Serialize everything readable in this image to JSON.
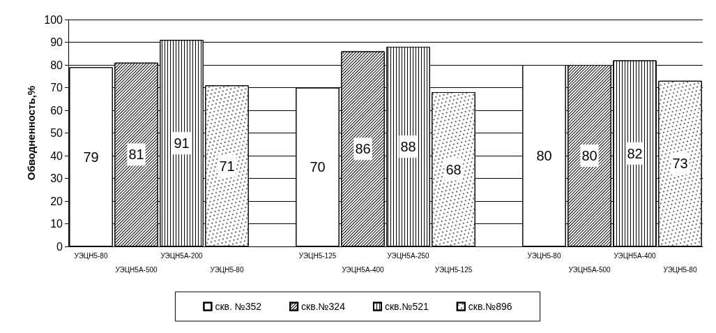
{
  "chart_data": {
    "type": "bar",
    "ylabel": "Обводненность,%",
    "categories": [
      "УЭЦН5-80",
      "УЭЦН5А-500",
      "УЭЦН5А-200",
      "УЭЦН5-80",
      null,
      "УЭЦН5-125",
      "УЭЦН5А-400",
      "УЭЦН5А-250",
      "УЭЦН5-125",
      null,
      "УЭЦН5-80",
      "УЭЦН5А-500",
      "УЭЦН5А-400",
      "УЭЦН5-80"
    ],
    "series": [
      {
        "name": "скв. №352",
        "color": "#ffffff",
        "values": [
          79,
          null,
          null,
          null,
          null,
          70,
          null,
          null,
          null,
          null,
          80,
          null,
          null,
          null
        ]
      },
      {
        "name": "скв.№324",
        "color": "#ffffff",
        "values": [
          null,
          81,
          null,
          null,
          null,
          null,
          86,
          null,
          null,
          null,
          null,
          80,
          null,
          null
        ]
      },
      {
        "name": "скв.№521",
        "color": "#ffffff",
        "values": [
          null,
          null,
          91,
          null,
          null,
          null,
          null,
          88,
          null,
          null,
          null,
          null,
          82,
          null
        ]
      },
      {
        "name": "скв.№896",
        "color": "#ffffff",
        "values": [
          null,
          null,
          null,
          71,
          null,
          null,
          null,
          null,
          68,
          null,
          null,
          null,
          null,
          73
        ]
      }
    ],
    "stacked": true,
    "data_labels": true,
    "ylim": [
      0,
      100
    ],
    "yticks": [
      0,
      10,
      20,
      30,
      40,
      50,
      60,
      70,
      80,
      90,
      100
    ],
    "grid": "y",
    "legend": "bottom"
  }
}
